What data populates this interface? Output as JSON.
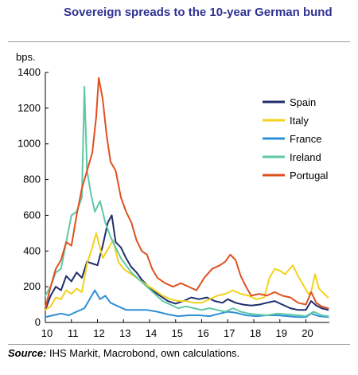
{
  "title": "Sovereign spreads to the 10-year German bund",
  "unit_label": "bps.",
  "source_label": "Source:",
  "source_text": " IHS Markit, Macrobond, own calculations.",
  "chart_data": {
    "type": "line",
    "title": "Sovereign spreads to the 10-year German bund",
    "ylabel": "bps.",
    "xlabel": "",
    "xlim": [
      2010,
      2020.9
    ],
    "ylim": [
      0,
      1400
    ],
    "yticks": [
      0,
      200,
      400,
      600,
      800,
      1000,
      1200,
      1400
    ],
    "xticks": [
      2010,
      2011,
      2012,
      2013,
      2014,
      2015,
      2016,
      2017,
      2018,
      2019,
      2020
    ],
    "xtick_labels": [
      "10",
      "11",
      "12",
      "13",
      "14",
      "15",
      "16",
      "17",
      "18",
      "19",
      "20"
    ],
    "grid": false,
    "legend_position": "top-right",
    "series": [
      {
        "name": "Spain",
        "color": "#1f2d6e",
        "x": [
          2010.0,
          2010.2,
          2010.4,
          2010.6,
          2010.8,
          2011.0,
          2011.2,
          2011.4,
          2011.6,
          2011.8,
          2012.0,
          2012.2,
          2012.4,
          2012.55,
          2012.7,
          2012.9,
          2013.1,
          2013.3,
          2013.5,
          2013.7,
          2013.9,
          2014.1,
          2014.4,
          2014.7,
          2015.0,
          2015.3,
          2015.6,
          2015.9,
          2016.2,
          2016.5,
          2016.8,
          2017.0,
          2017.3,
          2017.6,
          2017.9,
          2018.2,
          2018.5,
          2018.8,
          2019.1,
          2019.4,
          2019.7,
          2020.0,
          2020.2,
          2020.4,
          2020.6,
          2020.85
        ],
        "y": [
          70,
          150,
          200,
          180,
          260,
          230,
          280,
          250,
          340,
          330,
          320,
          430,
          560,
          600,
          450,
          420,
          360,
          310,
          280,
          240,
          210,
          180,
          150,
          120,
          105,
          120,
          140,
          130,
          140,
          120,
          110,
          130,
          110,
          100,
          95,
          100,
          110,
          120,
          100,
          80,
          70,
          70,
          120,
          95,
          80,
          70
        ]
      },
      {
        "name": "Italy",
        "color": "#f2d21b",
        "x": [
          2010.0,
          2010.2,
          2010.4,
          2010.6,
          2010.8,
          2011.0,
          2011.2,
          2011.4,
          2011.6,
          2011.8,
          2011.95,
          2012.2,
          2012.4,
          2012.6,
          2012.8,
          2013.0,
          2013.3,
          2013.6,
          2013.9,
          2014.2,
          2014.5,
          2014.8,
          2015.1,
          2015.4,
          2015.7,
          2016.0,
          2016.3,
          2016.6,
          2016.9,
          2017.2,
          2017.5,
          2017.8,
          2018.1,
          2018.4,
          2018.6,
          2018.8,
          2019.0,
          2019.2,
          2019.5,
          2019.7,
          2019.9,
          2020.1,
          2020.2,
          2020.35,
          2020.5,
          2020.7,
          2020.85
        ],
        "y": [
          70,
          90,
          140,
          130,
          180,
          160,
          190,
          170,
          330,
          420,
          500,
          360,
          410,
          460,
          340,
          300,
          270,
          240,
          210,
          180,
          150,
          130,
          120,
          120,
          110,
          110,
          130,
          150,
          160,
          180,
          160,
          150,
          130,
          140,
          250,
          300,
          290,
          270,
          320,
          260,
          210,
          160,
          170,
          270,
          190,
          160,
          140
        ]
      },
      {
        "name": "France",
        "color": "#2f8fd6",
        "x": [
          2010.0,
          2010.3,
          2010.6,
          2010.9,
          2011.2,
          2011.5,
          2011.7,
          2011.9,
          2012.1,
          2012.3,
          2012.5,
          2012.8,
          2013.1,
          2013.5,
          2013.9,
          2014.3,
          2014.7,
          2015.1,
          2015.5,
          2015.9,
          2016.3,
          2016.7,
          2017.0,
          2017.3,
          2017.7,
          2018.1,
          2018.5,
          2018.9,
          2019.3,
          2019.7,
          2020.0,
          2020.2,
          2020.5,
          2020.85
        ],
        "y": [
          30,
          40,
          50,
          40,
          60,
          80,
          130,
          180,
          130,
          150,
          110,
          90,
          70,
          70,
          70,
          60,
          45,
          35,
          40,
          40,
          35,
          50,
          60,
          55,
          40,
          35,
          40,
          40,
          35,
          30,
          30,
          50,
          35,
          30
        ]
      },
      {
        "name": "Ireland",
        "color": "#5fc8a6",
        "x": [
          2010.0,
          2010.2,
          2010.4,
          2010.6,
          2010.8,
          2011.0,
          2011.2,
          2011.4,
          2011.5,
          2011.6,
          2011.75,
          2011.9,
          2012.1,
          2012.3,
          2012.5,
          2012.7,
          2012.9,
          2013.1,
          2013.3,
          2013.6,
          2013.9,
          2014.2,
          2014.5,
          2014.8,
          2015.1,
          2015.4,
          2015.7,
          2016.0,
          2016.3,
          2016.6,
          2016.9,
          2017.2,
          2017.5,
          2017.8,
          2018.1,
          2018.5,
          2018.9,
          2019.3,
          2019.7,
          2020.0,
          2020.3,
          2020.6,
          2020.85
        ],
        "y": [
          150,
          200,
          280,
          300,
          450,
          600,
          620,
          700,
          1320,
          850,
          720,
          620,
          680,
          560,
          480,
          420,
          360,
          320,
          280,
          240,
          200,
          160,
          120,
          100,
          80,
          90,
          80,
          70,
          80,
          70,
          60,
          80,
          60,
          50,
          45,
          40,
          50,
          45,
          40,
          35,
          60,
          40,
          35
        ]
      },
      {
        "name": "Portugal",
        "color": "#e0501f",
        "x": [
          2010.0,
          2010.2,
          2010.4,
          2010.6,
          2010.8,
          2011.0,
          2011.2,
          2011.4,
          2011.6,
          2011.8,
          2011.95,
          2012.05,
          2012.2,
          2012.35,
          2012.5,
          2012.7,
          2012.9,
          2013.1,
          2013.3,
          2013.5,
          2013.7,
          2013.9,
          2014.1,
          2014.3,
          2014.6,
          2014.9,
          2015.2,
          2015.5,
          2015.8,
          2016.1,
          2016.4,
          2016.7,
          2016.9,
          2017.1,
          2017.3,
          2017.5,
          2017.7,
          2017.9,
          2018.2,
          2018.5,
          2018.8,
          2019.1,
          2019.4,
          2019.7,
          2020.0,
          2020.2,
          2020.4,
          2020.6,
          2020.85
        ],
        "y": [
          80,
          200,
          300,
          350,
          450,
          430,
          600,
          750,
          850,
          950,
          1150,
          1370,
          1250,
          1050,
          900,
          850,
          700,
          620,
          560,
          460,
          400,
          380,
          300,
          250,
          220,
          200,
          220,
          200,
          180,
          250,
          300,
          320,
          340,
          380,
          350,
          260,
          200,
          150,
          160,
          150,
          170,
          150,
          140,
          110,
          100,
          170,
          110,
          90,
          80
        ]
      }
    ]
  }
}
